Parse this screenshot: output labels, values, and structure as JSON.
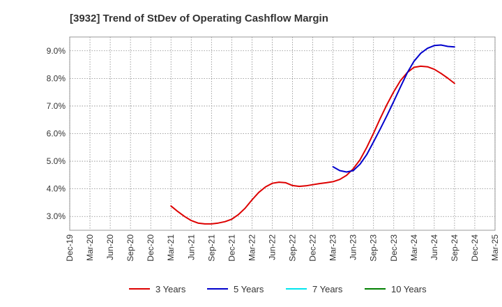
{
  "chart_data": {
    "type": "line",
    "title": "[3932]  Trend of StDev of Operating Cashflow Margin",
    "xlabel": "",
    "ylabel": "",
    "x_ticks": [
      "Dec-19",
      "Mar-20",
      "Jun-20",
      "Sep-20",
      "Dec-20",
      "Mar-21",
      "Jun-21",
      "Sep-21",
      "Dec-21",
      "Mar-22",
      "Jun-22",
      "Sep-22",
      "Dec-22",
      "Mar-23",
      "Jun-23",
      "Sep-23",
      "Dec-23",
      "Mar-24",
      "Jun-24",
      "Sep-24",
      "Dec-24",
      "Mar-25"
    ],
    "y_ticks": [
      3.0,
      4.0,
      5.0,
      6.0,
      7.0,
      8.0,
      9.0
    ],
    "y_tick_labels": [
      "3.0%",
      "4.0%",
      "5.0%",
      "6.0%",
      "7.0%",
      "8.0%",
      "9.0%"
    ],
    "ylim": [
      2.5,
      9.5
    ],
    "grid": true,
    "legend_position": "bottom",
    "series": [
      {
        "name": "3 Years",
        "color": "#dd0000",
        "x": [
          "Mar-21",
          "Apr-21",
          "May-21",
          "Jun-21",
          "Jul-21",
          "Aug-21",
          "Sep-21",
          "Oct-21",
          "Nov-21",
          "Dec-21",
          "Jan-22",
          "Feb-22",
          "Mar-22",
          "Apr-22",
          "May-22",
          "Jun-22",
          "Jul-22",
          "Aug-22",
          "Sep-22",
          "Oct-22",
          "Nov-22",
          "Dec-22",
          "Jan-23",
          "Feb-23",
          "Mar-23",
          "Apr-23",
          "May-23",
          "Jun-23",
          "Jul-23",
          "Aug-23",
          "Sep-23",
          "Oct-23",
          "Nov-23",
          "Dec-23",
          "Jan-24",
          "Feb-24",
          "Mar-24",
          "Apr-24",
          "May-24",
          "Jun-24",
          "Jul-24",
          "Aug-24",
          "Sep-24"
        ],
        "values": [
          3.38,
          3.18,
          3.0,
          2.85,
          2.76,
          2.73,
          2.73,
          2.76,
          2.81,
          2.9,
          3.07,
          3.3,
          3.6,
          3.87,
          4.07,
          4.2,
          4.24,
          4.22,
          4.12,
          4.09,
          4.11,
          4.15,
          4.19,
          4.22,
          4.26,
          4.34,
          4.49,
          4.73,
          5.05,
          5.5,
          6.01,
          6.55,
          7.06,
          7.52,
          7.92,
          8.21,
          8.4,
          8.44,
          8.42,
          8.33,
          8.18,
          8.01,
          7.82
        ]
      },
      {
        "name": "5 Years",
        "color": "#0000cc",
        "x": [
          "Mar-23",
          "Apr-23",
          "May-23",
          "Jun-23",
          "Jul-23",
          "Aug-23",
          "Sep-23",
          "Oct-23",
          "Nov-23",
          "Dec-23",
          "Jan-24",
          "Feb-24",
          "Mar-24",
          "Apr-24",
          "May-24",
          "Jun-24",
          "Jul-24",
          "Aug-24",
          "Sep-24"
        ],
        "values": [
          4.8,
          4.66,
          4.61,
          4.66,
          4.89,
          5.24,
          5.7,
          6.17,
          6.66,
          7.17,
          7.69,
          8.2,
          8.62,
          8.91,
          9.09,
          9.19,
          9.21,
          9.16,
          9.14
        ]
      },
      {
        "name": "7 Years",
        "color": "#00e5ee",
        "x": [],
        "values": []
      },
      {
        "name": "10 Years",
        "color": "#008000",
        "x": [],
        "values": []
      }
    ]
  }
}
